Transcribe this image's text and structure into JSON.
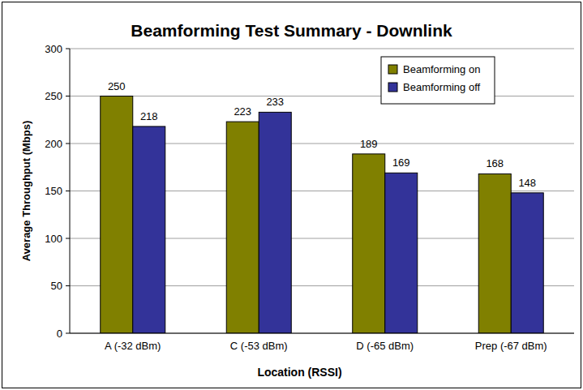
{
  "chart_data": {
    "type": "bar",
    "title": "Beamforming Test Summary - Downlink",
    "x_label": "Location (RSSI)",
    "y_label": "Average Throughput (Mbps)",
    "categories": [
      "A (-32 dBm)",
      "C (-53 dBm)",
      "D (-65 dBm)",
      "Prep (-67 dBm)"
    ],
    "series": [
      {
        "name": "Beamforming on",
        "color": "#808000",
        "values": [
          250,
          223,
          189,
          168
        ]
      },
      {
        "name": "Beamforming off",
        "color": "#333399",
        "values": [
          218,
          233,
          169,
          148
        ]
      }
    ],
    "ylim": [
      0,
      300
    ],
    "yticks": [
      0,
      50,
      100,
      150,
      200,
      250,
      300
    ],
    "grid": true,
    "legend": "top-right",
    "data_labels": true
  }
}
